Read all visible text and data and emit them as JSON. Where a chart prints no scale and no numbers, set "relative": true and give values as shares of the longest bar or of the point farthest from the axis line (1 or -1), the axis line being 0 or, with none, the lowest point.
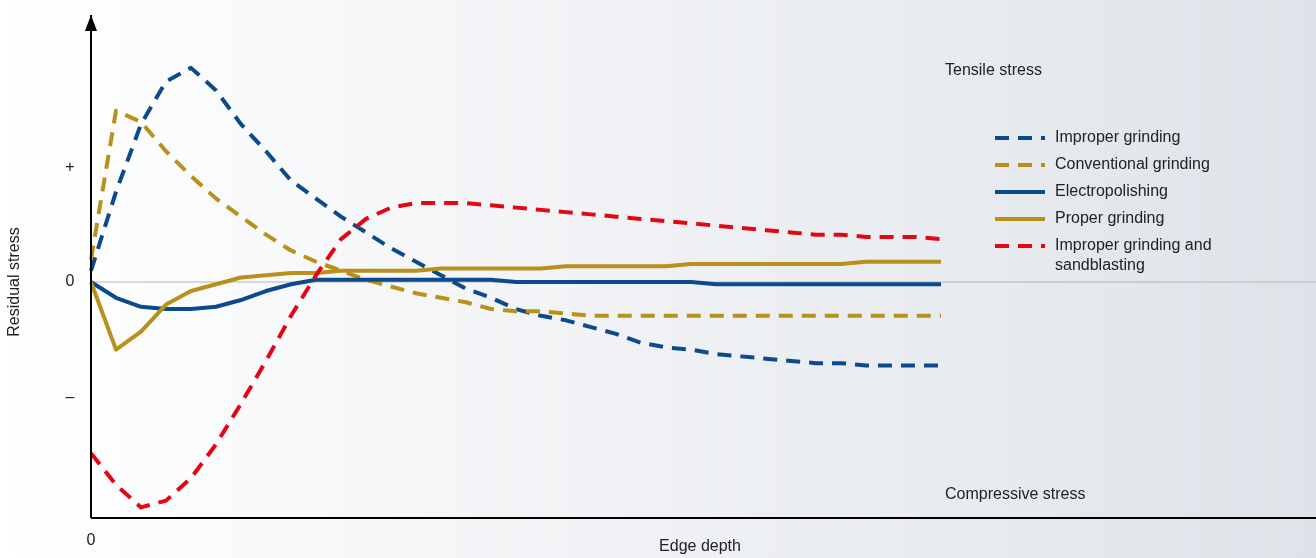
{
  "chart_data": {
    "type": "line",
    "relative": true,
    "xlabel": "Edge depth",
    "ylabel": "Residual stress",
    "categories": [
      null,
      null,
      null,
      null,
      null,
      null,
      null,
      null,
      null,
      null,
      null,
      null,
      null,
      null,
      null,
      null,
      null,
      null,
      null,
      null,
      null,
      null,
      null,
      null,
      null,
      null,
      null,
      null,
      null,
      null,
      null,
      null,
      null,
      null,
      null,
      null,
      null,
      null,
      null,
      null,
      null,
      null,
      null,
      null,
      null,
      null,
      null,
      null,
      null,
      null
    ],
    "annotations": [
      "Tensile stress",
      "Compressive stress",
      "0",
      "+",
      "0",
      "–"
    ],
    "legend": "top right",
    "marker": "none",
    "series": [
      {
        "name": "Improper grinding",
        "color": "#0b4a8c",
        "line_style": "dashed",
        "values": [
          0.05,
          0.4,
          0.7,
          0.89,
          0.95,
          0.85,
          0.7,
          0.58,
          0.45,
          0.37,
          0.29,
          0.22,
          0.15,
          0.09,
          0.03,
          -0.03,
          -0.07,
          -0.12,
          -0.15,
          -0.17,
          -0.2,
          -0.23,
          -0.27,
          -0.29,
          -0.3,
          -0.32,
          -0.33,
          -0.34,
          -0.35,
          -0.36,
          -0.36,
          -0.37,
          -0.37,
          -0.37,
          -0.37,
          null,
          null,
          null,
          null,
          null,
          null,
          null,
          null,
          null,
          null,
          null,
          null,
          null,
          null,
          null
        ]
      },
      {
        "name": "Conventional grinding",
        "color": "#b8901c",
        "line_style": "dashed",
        "values": [
          0.1,
          0.76,
          0.71,
          0.58,
          0.47,
          0.37,
          0.29,
          0.21,
          0.14,
          0.09,
          0.05,
          0.01,
          -0.02,
          -0.05,
          -0.07,
          -0.09,
          -0.12,
          -0.13,
          -0.13,
          -0.14,
          -0.15,
          -0.15,
          -0.15,
          -0.15,
          -0.15,
          -0.15,
          -0.15,
          -0.15,
          -0.15,
          -0.15,
          -0.15,
          -0.15,
          -0.15,
          -0.15,
          -0.15,
          null,
          null,
          null,
          null,
          null,
          null,
          null,
          null,
          null,
          null,
          null,
          null,
          null,
          null,
          null
        ]
      },
      {
        "name": "Electropolishing",
        "color": "#0b4a8c",
        "line_style": "solid",
        "values": [
          0,
          -0.07,
          -0.11,
          -0.12,
          -0.12,
          -0.11,
          -0.08,
          -0.04,
          -0.01,
          0.01,
          0.01,
          0.01,
          0.01,
          0.01,
          0.01,
          0.01,
          0.01,
          0,
          0,
          0,
          0,
          0,
          0,
          0,
          0,
          -0.01,
          -0.01,
          -0.01,
          -0.01,
          -0.01,
          -0.01,
          -0.01,
          -0.01,
          -0.01,
          -0.01,
          null,
          null,
          null,
          null,
          null,
          null,
          null,
          null,
          null,
          null,
          null,
          null,
          null,
          null,
          null
        ]
      },
      {
        "name": "Proper grinding",
        "color": "#b8901c",
        "line_style": "solid",
        "values": [
          0,
          -0.3,
          -0.22,
          -0.1,
          -0.04,
          -0.01,
          0.02,
          0.03,
          0.04,
          0.04,
          0.05,
          0.05,
          0.05,
          0.05,
          0.06,
          0.06,
          0.06,
          0.06,
          0.06,
          0.07,
          0.07,
          0.07,
          0.07,
          0.07,
          0.08,
          0.08,
          0.08,
          0.08,
          0.08,
          0.08,
          0.08,
          0.09,
          0.09,
          0.09,
          0.09,
          null,
          null,
          null,
          null,
          null,
          null,
          null,
          null,
          null,
          null,
          null,
          null,
          null,
          null,
          null
        ]
      },
      {
        "name": "Improper grinding and sandblasting",
        "color": "#e30613",
        "line_style": "dashed",
        "values": [
          -0.76,
          -0.9,
          -1,
          -0.97,
          -0.87,
          -0.72,
          -0.54,
          -0.35,
          -0.15,
          0.03,
          0.19,
          0.28,
          0.33,
          0.35,
          0.35,
          0.35,
          0.34,
          0.33,
          0.32,
          0.31,
          0.3,
          0.29,
          0.28,
          0.27,
          0.26,
          0.25,
          0.24,
          0.23,
          0.22,
          0.21,
          0.21,
          0.2,
          0.2,
          0.2,
          0.19,
          null,
          null,
          null,
          null,
          null,
          null,
          null,
          null,
          null,
          null,
          null,
          null,
          null,
          null,
          null
        ]
      }
    ]
  }
}
